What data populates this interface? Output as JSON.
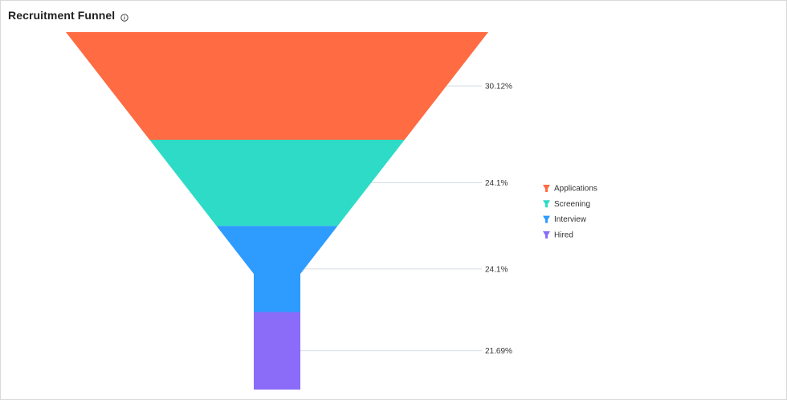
{
  "header": {
    "title": "Recruitment Funnel",
    "info_icon": "info-icon"
  },
  "chart_data": {
    "type": "funnel",
    "title": "Recruitment Funnel",
    "categories": [
      "Applications",
      "Screening",
      "Interview",
      "Hired"
    ],
    "values": [
      30.12,
      24.1,
      24.1,
      21.69
    ],
    "labels": [
      "30.12%",
      "24.1%",
      "24.1%",
      "21.69%"
    ],
    "colors": [
      "#FF6B42",
      "#2EDBC6",
      "#2E9BFF",
      "#8A6CF8"
    ],
    "legend": {
      "position": "right",
      "entries": [
        "Applications",
        "Screening",
        "Interview",
        "Hired"
      ]
    }
  }
}
